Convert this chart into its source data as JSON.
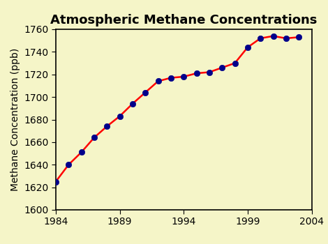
{
  "title": "Atmospheric Methane Concentrations",
  "xlabel": "",
  "ylabel": "Methane Concentration (ppb)",
  "background_color": "#f5f5c8",
  "plot_bg_color": "#f5f5c8",
  "line_color": "#ff0000",
  "marker_color": "#00008b",
  "marker_edge_color": "#00008b",
  "xlim": [
    1984,
    2004
  ],
  "ylim": [
    1600,
    1760
  ],
  "xticks": [
    1984,
    1989,
    1994,
    1999,
    2004
  ],
  "yticks": [
    1600,
    1620,
    1640,
    1660,
    1680,
    1700,
    1720,
    1740,
    1760
  ],
  "years": [
    1984,
    1985,
    1986,
    1987,
    1988,
    1989,
    1990,
    1991,
    1992,
    1993,
    1994,
    1995,
    1996,
    1997,
    1998,
    1999,
    2000,
    2001,
    2002,
    2003
  ],
  "values": [
    1625,
    1640,
    1651,
    1664,
    1674,
    1683,
    1694,
    1704,
    1714,
    1717,
    1718,
    1721,
    1722,
    1726,
    1730,
    1744,
    1752,
    1754,
    1752,
    1753
  ],
  "title_fontsize": 13,
  "label_fontsize": 10,
  "tick_fontsize": 10,
  "line_width": 1.8,
  "marker_size": 6
}
